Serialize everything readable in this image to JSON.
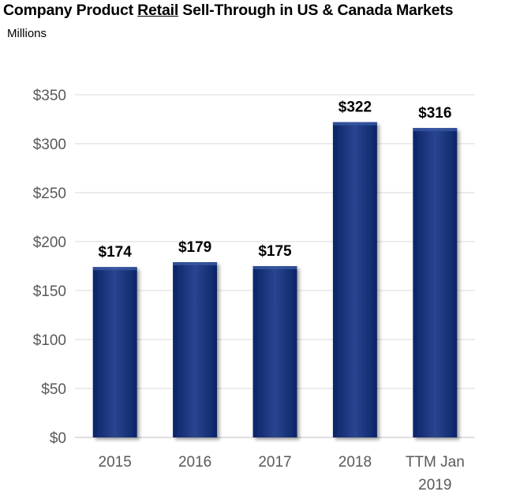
{
  "header": {
    "title_pre": "Company Product ",
    "title_emph": "Retail",
    "title_post": " Sell-Through in US & Canada Markets",
    "subtitle": "Millions"
  },
  "colors": {
    "bar": "#0b2567",
    "bar_highlight": "#2a4590",
    "grid": "#d9d9d9",
    "axis": "#bfbfbf"
  },
  "chart_data": {
    "type": "bar",
    "title": "Company Product Retail Sell-Through in US & Canada Markets",
    "subtitle": "Millions",
    "categories": [
      [
        "2015"
      ],
      [
        "2016"
      ],
      [
        "2017"
      ],
      [
        "2018"
      ],
      [
        "TTM Jan",
        "2019"
      ]
    ],
    "values": [
      174,
      179,
      175,
      322,
      316
    ],
    "data_labels": [
      "$174",
      "$179",
      "$175",
      "$322",
      "$316"
    ],
    "yticks": [
      "$0",
      "$50",
      "$100",
      "$150",
      "$200",
      "$250",
      "$300",
      "$350"
    ],
    "ylim": [
      0,
      350
    ],
    "grid": true,
    "legend": "none"
  }
}
